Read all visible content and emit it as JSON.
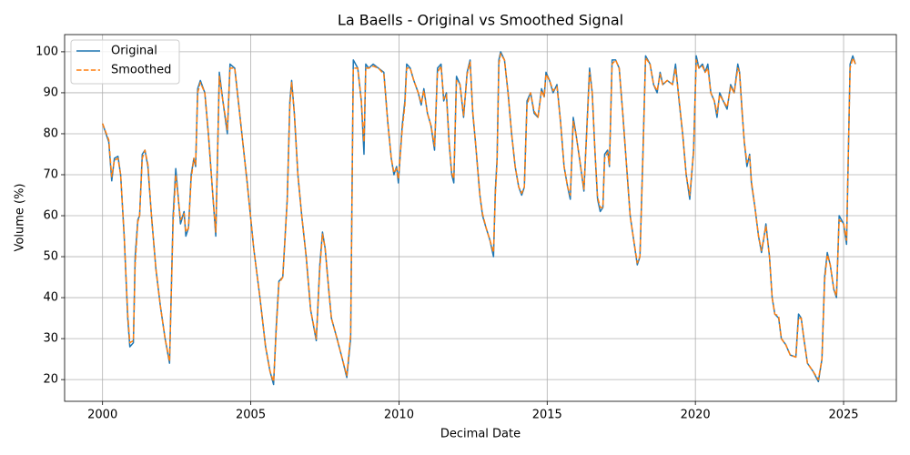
{
  "chart_data": {
    "type": "line",
    "title": "La Baells - Original vs Smoothed Signal",
    "x_label": "Decimal Date",
    "y_label": "Volume (%)",
    "xlim": [
      1998.72,
      2026.78
    ],
    "ylim": [
      14.7,
      104.2
    ],
    "xticks": [
      2000,
      2005,
      2010,
      2015,
      2020,
      2025
    ],
    "yticks": [
      20,
      30,
      40,
      50,
      60,
      70,
      80,
      90,
      100
    ],
    "grid": true,
    "legend": "upper left",
    "x": [
      2000.0,
      2000.21,
      2000.31,
      2000.4,
      2000.52,
      2000.61,
      2000.73,
      2000.85,
      2000.92,
      2001.04,
      2001.1,
      2001.19,
      2001.25,
      2001.34,
      2001.43,
      2001.53,
      2001.65,
      2001.8,
      2001.95,
      2002.11,
      2002.26,
      2002.38,
      2002.47,
      2002.63,
      2002.75,
      2002.81,
      2002.9,
      2002.99,
      2003.08,
      2003.14,
      2003.21,
      2003.3,
      2003.45,
      2003.57,
      2003.72,
      2003.82,
      2003.94,
      2004.06,
      2004.21,
      2004.3,
      2004.46,
      2004.58,
      2004.7,
      2004.88,
      2005.1,
      2005.31,
      2005.5,
      2005.65,
      2005.77,
      2005.86,
      2005.95,
      2006.08,
      2006.23,
      2006.32,
      2006.38,
      2006.47,
      2006.59,
      2006.72,
      2006.87,
      2007.02,
      2007.21,
      2007.33,
      2007.42,
      2007.51,
      2007.63,
      2007.72,
      2007.91,
      2008.09,
      2008.24,
      2008.37,
      2008.46,
      2008.61,
      2008.73,
      2008.82,
      2008.88,
      2008.98,
      2009.13,
      2009.31,
      2009.49,
      2009.62,
      2009.74,
      2009.83,
      2009.92,
      2009.98,
      2010.11,
      2010.2,
      2010.26,
      2010.38,
      2010.5,
      2010.65,
      2010.75,
      2010.84,
      2010.96,
      2011.08,
      2011.2,
      2011.3,
      2011.42,
      2011.51,
      2011.6,
      2011.69,
      2011.78,
      2011.85,
      2011.94,
      2012.06,
      2012.18,
      2012.3,
      2012.4,
      2012.49,
      2012.58,
      2012.73,
      2012.82,
      2012.94,
      2013.07,
      2013.19,
      2013.25,
      2013.31,
      2013.37,
      2013.43,
      2013.56,
      2013.68,
      2013.8,
      2013.92,
      2014.04,
      2014.14,
      2014.23,
      2014.32,
      2014.44,
      2014.56,
      2014.69,
      2014.81,
      2014.9,
      2014.96,
      2015.08,
      2015.2,
      2015.33,
      2015.45,
      2015.57,
      2015.69,
      2015.78,
      2015.88,
      2015.97,
      2016.09,
      2016.24,
      2016.36,
      2016.43,
      2016.52,
      2016.61,
      2016.7,
      2016.79,
      2016.88,
      2016.94,
      2017.04,
      2017.1,
      2017.19,
      2017.31,
      2017.43,
      2017.55,
      2017.68,
      2017.8,
      2017.92,
      2018.04,
      2018.13,
      2018.23,
      2018.32,
      2018.47,
      2018.59,
      2018.71,
      2018.81,
      2018.9,
      2019.05,
      2019.23,
      2019.33,
      2019.45,
      2019.57,
      2019.69,
      2019.81,
      2019.94,
      2020.03,
      2020.12,
      2020.24,
      2020.33,
      2020.42,
      2020.52,
      2020.64,
      2020.73,
      2020.82,
      2020.94,
      2021.07,
      2021.19,
      2021.31,
      2021.43,
      2021.49,
      2021.58,
      2021.65,
      2021.74,
      2021.83,
      2021.89,
      2022.01,
      2022.13,
      2022.23,
      2022.32,
      2022.38,
      2022.5,
      2022.59,
      2022.68,
      2022.81,
      2022.9,
      2023.05,
      2023.2,
      2023.39,
      2023.48,
      2023.57,
      2023.66,
      2023.78,
      2023.97,
      2024.15,
      2024.27,
      2024.36,
      2024.45,
      2024.55,
      2024.67,
      2024.76,
      2024.85,
      2025.0,
      2025.1,
      2025.22,
      2025.31,
      2025.4
    ],
    "series": [
      {
        "name": "Original",
        "color": "#1f77b4",
        "linestyle": "solid",
        "values": [
          82.5,
          78,
          68.5,
          74,
          74.5,
          70,
          55,
          35,
          28,
          29,
          50,
          59,
          60,
          75,
          76,
          72,
          60,
          47,
          38,
          30,
          24,
          60,
          71.5,
          58,
          61,
          55,
          57,
          70,
          74,
          72,
          91,
          93,
          90,
          80,
          65,
          55,
          95,
          88,
          80,
          97,
          96,
          88,
          80,
          68,
          52,
          40,
          28,
          22,
          18.8,
          33,
          44,
          45,
          64,
          88,
          93,
          85,
          70,
          60,
          50,
          37,
          29.5,
          48,
          56,
          52,
          42,
          35,
          30,
          25,
          20.5,
          30,
          98,
          96,
          88,
          75,
          97,
          96,
          97,
          96,
          95,
          83,
          74,
          70,
          72,
          68,
          82,
          88,
          97,
          96,
          93,
          90,
          87,
          91,
          85,
          82,
          76,
          96,
          97,
          88,
          90,
          78,
          70,
          68,
          94,
          92,
          84,
          95,
          98,
          85,
          78,
          65,
          60,
          57,
          54,
          50,
          66,
          74,
          98,
          100,
          98,
          90,
          80,
          72,
          67,
          65,
          67,
          88,
          90,
          85,
          84,
          91,
          89,
          95,
          93,
          90,
          92,
          83,
          72,
          67,
          64,
          84,
          80,
          74,
          66,
          85,
          96,
          90,
          76,
          64,
          61,
          62,
          75,
          76,
          72,
          98,
          98,
          96,
          85,
          72,
          60,
          54,
          48,
          50,
          75,
          99,
          97,
          92,
          90,
          95,
          92,
          93,
          92,
          97,
          88,
          80,
          70,
          64,
          76,
          99,
          96,
          97,
          95,
          97,
          90,
          88,
          84,
          90,
          88,
          86,
          92,
          90,
          97,
          95,
          85,
          78,
          72,
          75,
          68,
          62,
          55,
          51,
          55,
          58,
          50,
          40,
          36,
          35,
          30,
          28.5,
          26,
          25.5,
          36,
          35,
          30,
          24,
          22,
          19.5,
          25,
          45,
          51,
          48,
          42,
          40,
          60,
          58,
          53,
          97,
          99,
          97
        ]
      },
      {
        "name": "Smoothed",
        "color": "#ff7f0e",
        "linestyle": "dashed",
        "values": [
          82.5,
          78.5,
          69.5,
          73.5,
          74,
          70,
          55,
          36,
          29,
          29.5,
          48,
          58.5,
          60,
          74,
          76,
          72.5,
          60,
          47,
          38,
          30,
          24.5,
          58,
          70,
          59,
          60.5,
          56,
          57,
          69,
          74,
          72.5,
          90,
          92.5,
          90,
          80,
          65,
          56,
          94,
          88,
          81,
          96,
          96,
          88,
          80,
          68,
          52,
          40,
          28,
          22,
          19.5,
          32,
          43.5,
          45,
          63.5,
          87,
          92.5,
          85,
          70,
          60,
          50,
          37,
          30,
          47,
          55.5,
          52,
          42,
          35,
          30,
          25,
          21,
          31,
          96,
          96,
          88,
          78,
          96,
          96,
          96.5,
          96,
          94.5,
          83,
          74,
          70.5,
          71.5,
          69,
          81,
          87,
          96,
          96,
          93,
          90,
          87.5,
          90.5,
          85,
          82,
          77,
          95,
          96.5,
          88.5,
          89.5,
          78,
          70.5,
          69,
          93,
          92,
          84.5,
          94.5,
          97.5,
          85.5,
          78,
          65,
          60.5,
          57,
          54,
          51,
          65,
          73,
          97,
          99.5,
          98,
          90,
          80,
          72,
          67,
          65.5,
          67,
          87,
          90,
          85.5,
          84,
          90.5,
          89,
          94.5,
          93,
          90.5,
          91.5,
          83,
          72,
          67,
          65,
          83,
          80,
          74,
          66.5,
          84,
          95,
          90,
          76,
          64.5,
          62,
          62,
          74,
          75.5,
          72.5,
          97,
          98,
          96,
          85,
          72,
          60,
          54,
          48.5,
          50,
          74,
          98.5,
          97,
          92,
          90.5,
          94.5,
          92,
          93,
          92,
          96,
          88.5,
          80,
          70,
          65,
          75.5,
          98,
          96,
          96.5,
          95,
          96,
          90,
          88,
          85,
          89.5,
          88,
          86.5,
          91.5,
          90,
          96,
          95,
          85,
          78,
          73,
          74.5,
          68.5,
          62,
          55,
          51.5,
          55,
          57.5,
          50,
          40,
          36,
          35.5,
          30,
          28.5,
          26,
          25.5,
          35,
          35,
          30,
          24,
          22,
          20,
          25,
          44,
          50.5,
          48,
          42,
          40.5,
          59,
          58,
          54,
          96,
          98.5,
          97
        ]
      }
    ]
  }
}
